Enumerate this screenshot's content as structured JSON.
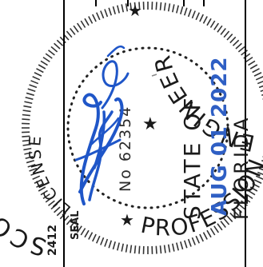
{
  "seal": {
    "name": "SCOTT WOLTERS",
    "license_heading": "LICENSE",
    "license_number": "No 62354",
    "state_line_1": "STATE OF",
    "state_line_2": "FLORIDA",
    "title_top": "ENGINEER",
    "title_bottom": "PROFESSIONAL",
    "seal_word": "SEAL",
    "side_code": "2412",
    "center_mark": "★"
  },
  "stamp": {
    "date": "AUG 01 2022"
  },
  "signature": {
    "description_color": "#1f56c8"
  },
  "colors": {
    "ink": "#1a1a1a",
    "signature_blue": "#1f56c8",
    "date_blue": "#2f5fc4"
  }
}
